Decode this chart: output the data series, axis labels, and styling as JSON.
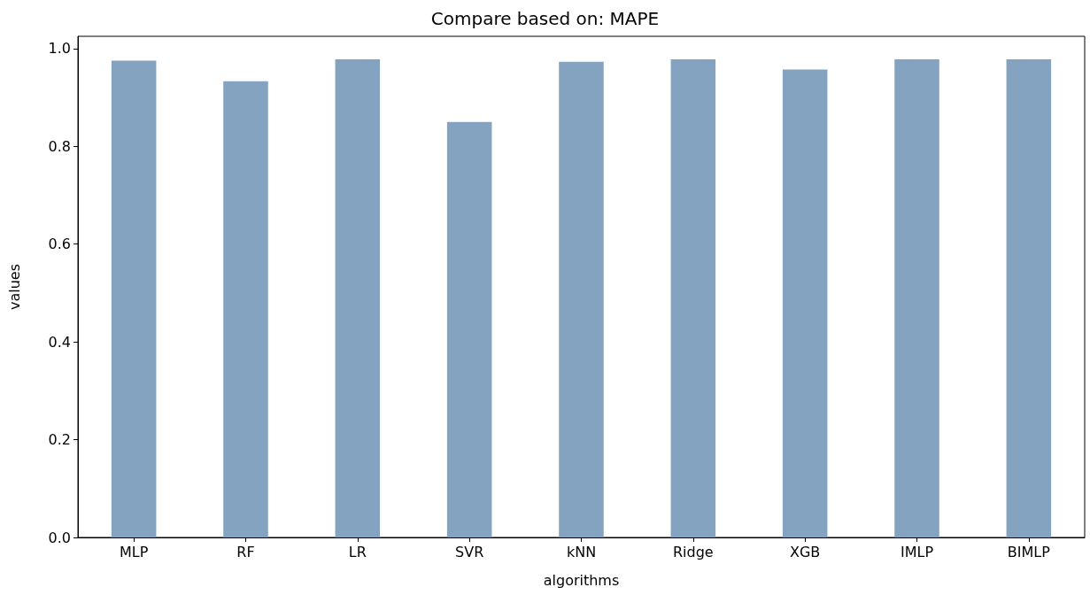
{
  "chart_data": {
    "type": "bar",
    "title": "Compare based on: MAPE",
    "xlabel": "algorithms",
    "ylabel": "values",
    "categories": [
      "MLP",
      "RF",
      "LR",
      "SVR",
      "kNN",
      "Ridge",
      "XGB",
      "IMLP",
      "BIMLP"
    ],
    "series": [
      {
        "color": "#84a3c1",
        "values": [
          0.975,
          0.933,
          0.978,
          0.85,
          0.973,
          0.978,
          0.957,
          0.978,
          0.978
        ]
      }
    ],
    "ylim": [
      0,
      1.025
    ],
    "yticks": [
      {
        "value": 0,
        "label": "0.0"
      },
      {
        "value": 0.2,
        "label": "0.2"
      },
      {
        "value": 0.4,
        "label": "0.4"
      },
      {
        "value": 0.6,
        "label": "0.6"
      },
      {
        "value": 0.8,
        "label": "0.8"
      },
      {
        "value": 1,
        "label": "1.0"
      }
    ],
    "grid": false
  }
}
